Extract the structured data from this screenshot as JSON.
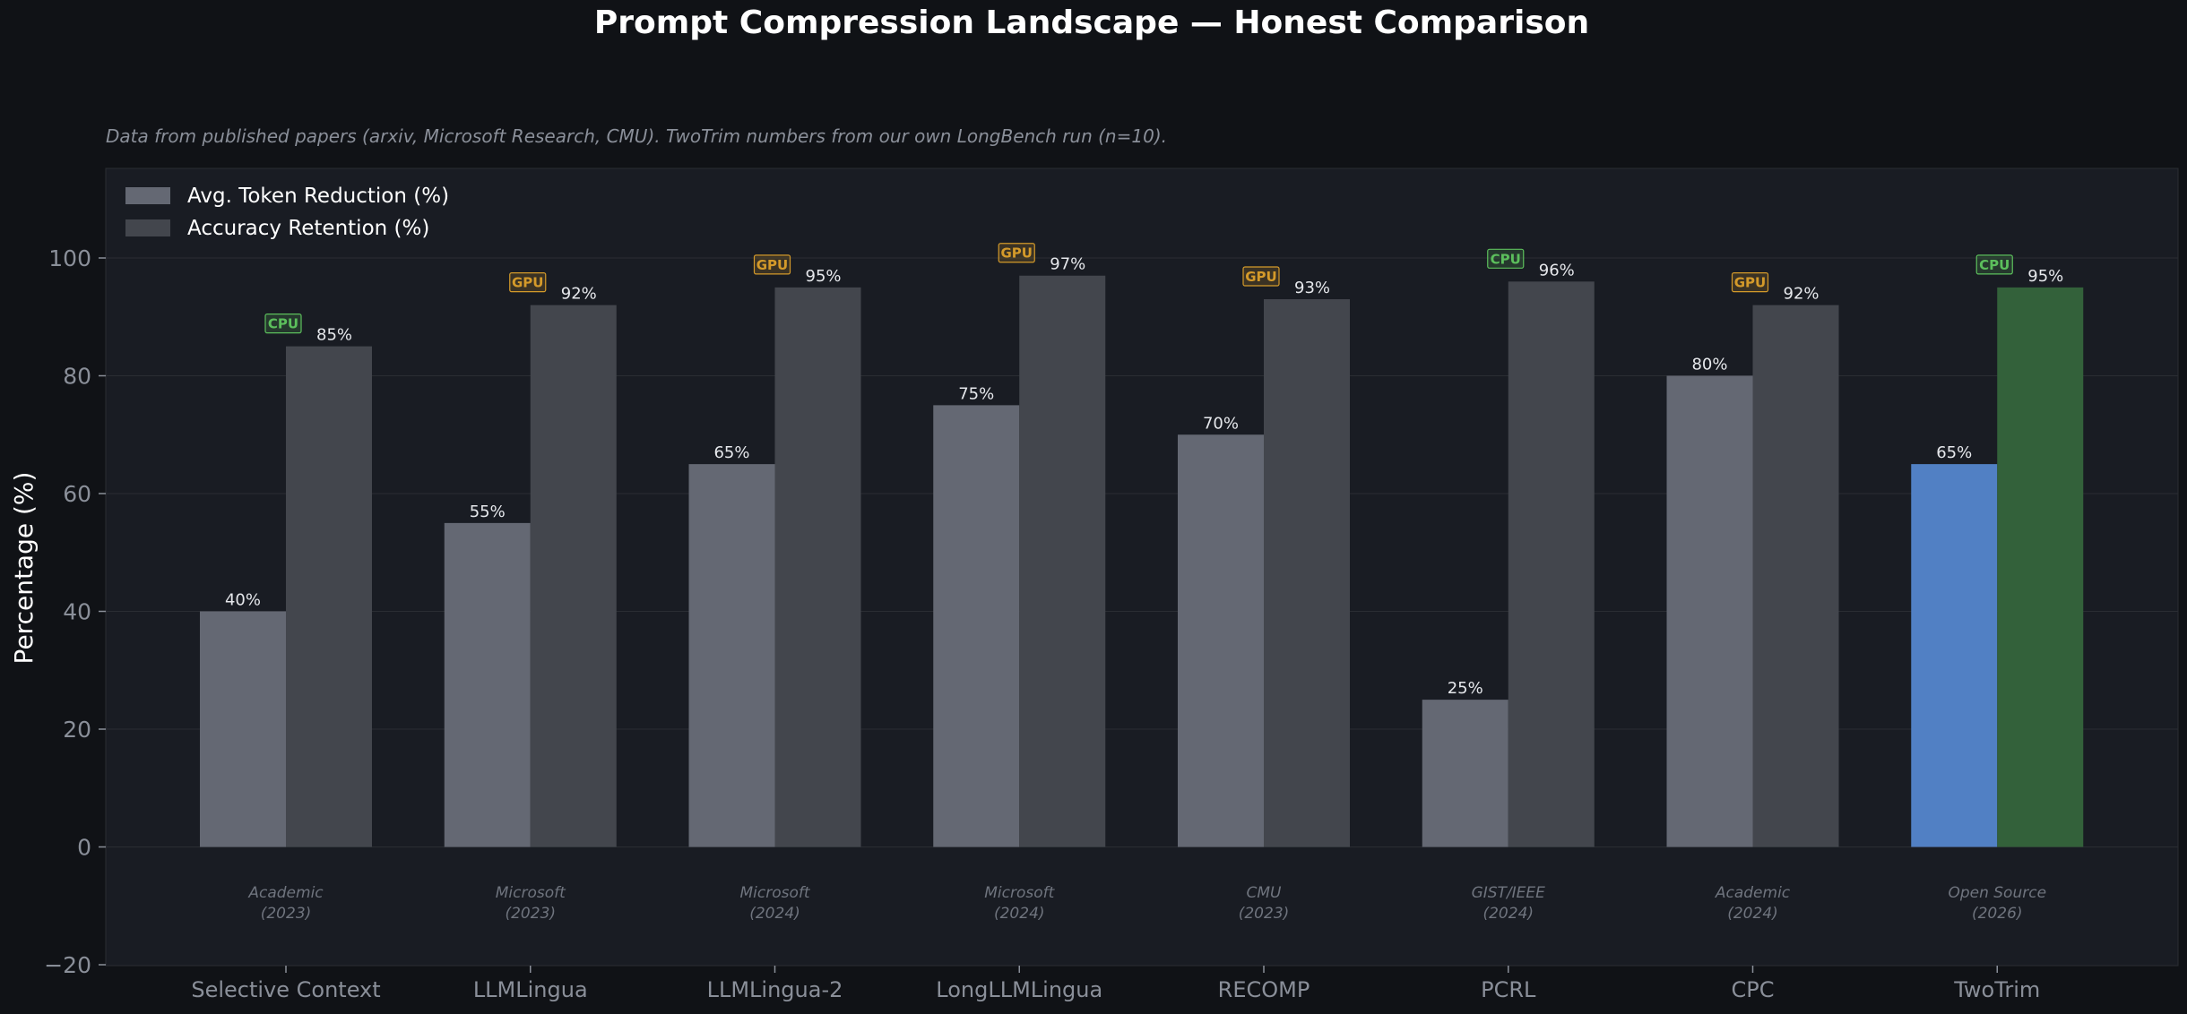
{
  "chart_data": {
    "type": "bar",
    "title": "Prompt Compression Landscape — Honest Comparison",
    "subtitle": "Data from published papers (arxiv, Microsoft Research, CMU). TwoTrim numbers from our own LongBench run (n=10).",
    "xlabel": "",
    "ylabel": "Percentage (%)",
    "ylim": [
      -20,
      115
    ],
    "yticks": [
      -20,
      0,
      20,
      40,
      60,
      80,
      100
    ],
    "ytick_labels": [
      "−20",
      "0",
      "20",
      "40",
      "60",
      "80",
      "100"
    ],
    "grid": true,
    "legend_position": "top-left",
    "categories": [
      "Selective Context",
      "LLMLingua",
      "LLMLingua-2",
      "LongLLMLingua",
      "RECOMP",
      "PCRL",
      "CPC",
      "TwoTrim"
    ],
    "series": [
      {
        "name": "Avg. Token Reduction (%)",
        "values": [
          40,
          55,
          65,
          75,
          70,
          25,
          80,
          65
        ],
        "labels": [
          "40%",
          "55%",
          "65%",
          "75%",
          "70%",
          "25%",
          "80%",
          "65%"
        ],
        "color": "#646873",
        "highlight_color": "#5180c4"
      },
      {
        "name": "Accuracy Retention (%)",
        "values": [
          85,
          92,
          95,
          97,
          93,
          96,
          92,
          95
        ],
        "labels": [
          "85%",
          "92%",
          "95%",
          "97%",
          "93%",
          "96%",
          "92%",
          "95%"
        ],
        "color": "#43464d",
        "highlight_color": "#33613a"
      }
    ],
    "highlight_category": "TwoTrim",
    "hardware_badges": [
      "CPU",
      "GPU",
      "GPU",
      "GPU",
      "GPU",
      "CPU",
      "GPU",
      "CPU"
    ],
    "badge_colors": {
      "CPU": "#5cbf5c",
      "GPU": "#d49a2a"
    },
    "sources": [
      [
        "Academic",
        "(2023)"
      ],
      [
        "Microsoft",
        "(2023)"
      ],
      [
        "Microsoft",
        "(2024)"
      ],
      [
        "Microsoft",
        "(2024)"
      ],
      [
        "CMU",
        "(2023)"
      ],
      [
        "GIST/IEEE",
        "(2024)"
      ],
      [
        "Academic",
        "(2024)"
      ],
      [
        "Open Source",
        "(2026)"
      ]
    ]
  },
  "colors": {
    "background": "#101216",
    "plot_background": "#191c23",
    "text": "#ffffff",
    "muted_text": "#8a8f99",
    "grid": "#2a2d33"
  }
}
